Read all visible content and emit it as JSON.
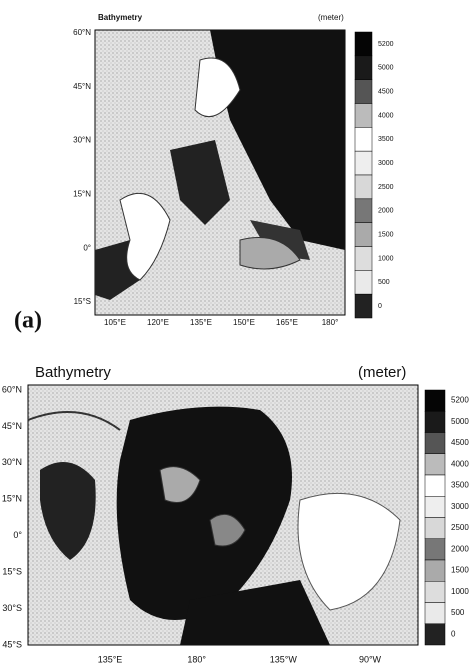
{
  "panel_a": {
    "title": "Bathymetry",
    "unit": "(meter)",
    "label": "(a)",
    "lat_labels": [
      "60°N",
      "45°N",
      "30°N",
      "15°N",
      "0°",
      "15°S"
    ],
    "lon_labels": [
      "105°E",
      "120°E",
      "135°E",
      "150°E",
      "165°E",
      "180°"
    ],
    "colorbar_labels": [
      "5200",
      "5000",
      "4500",
      "4000",
      "3500",
      "3000",
      "2500",
      "2000",
      "1500",
      "1000",
      "500",
      "0"
    ]
  },
  "panel_b": {
    "title": "Bathymetry",
    "unit": "(meter)",
    "lat_labels": [
      "60°N",
      "45°N",
      "30°N",
      "15°N",
      "0°",
      "15°S",
      "30°S",
      "45°S"
    ],
    "lon_labels": [
      "135°E",
      "180°",
      "135°W",
      "90°W"
    ],
    "colorbar_labels": [
      "5200",
      "5000",
      "4500",
      "4000",
      "3500",
      "3000",
      "2500",
      "2000",
      "1500",
      "1000",
      "500",
      "0"
    ]
  }
}
